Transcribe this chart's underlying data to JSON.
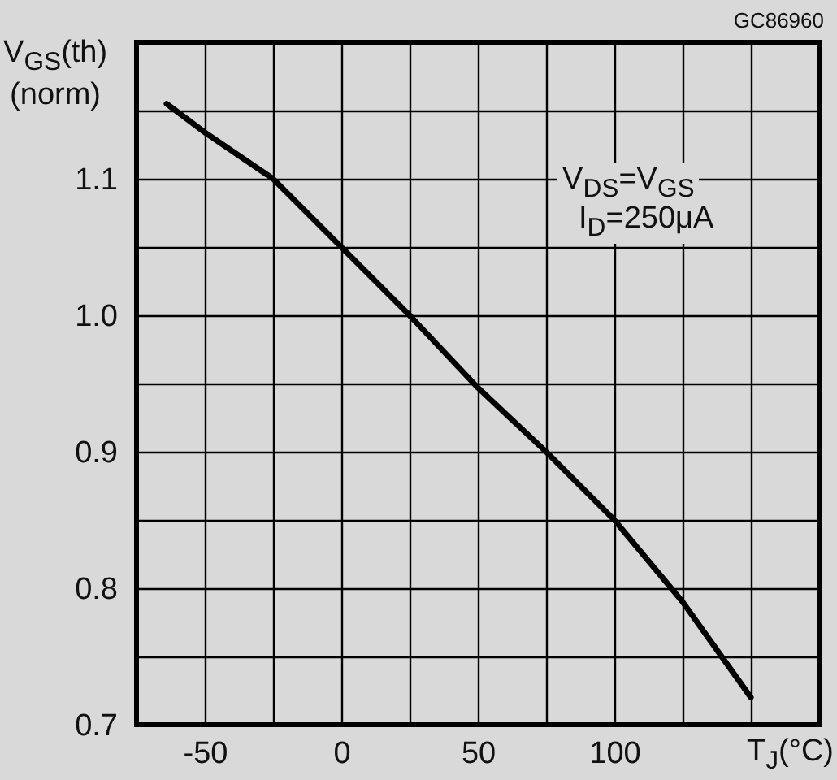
{
  "chart_data": {
    "type": "line",
    "ylabel": "V$_{GS}$(th)\n(norm)",
    "xlabel": "T$_{J}$(°C)",
    "annotations": [
      "GC86960",
      "V$_{DS}$=V$_{GS}$",
      "I$_{D}$=250μA"
    ],
    "x": [
      -64,
      -50,
      -25,
      0,
      25,
      50,
      75,
      100,
      125,
      150
    ],
    "series": [
      {
        "color": "#000000",
        "values": [
          1.155,
          1.134,
          1.1,
          1.05,
          1.0,
          0.947,
          0.9,
          0.85,
          0.79,
          0.72
        ]
      }
    ],
    "xlim": [
      -75,
      175
    ],
    "xticks": [
      {
        "value": -75,
        "label": null
      },
      -50,
      {
        "value": -25,
        "label": null
      },
      0,
      {
        "value": 25,
        "label": null
      },
      50,
      {
        "value": 75,
        "label": null
      },
      100,
      {
        "value": 125,
        "label": null
      },
      {
        "value": 150,
        "label": null
      },
      {
        "value": 175,
        "label": null
      }
    ],
    "ylim": [
      0.7,
      1.2
    ],
    "yticks": [
      0.7,
      {
        "value": 0.75,
        "label": null
      },
      0.8,
      {
        "value": 0.85,
        "label": null
      },
      0.9,
      {
        "value": 0.95,
        "label": null
      },
      {
        "value": 1,
        "label": "1.0"
      },
      {
        "value": 1.05,
        "label": null
      },
      1.1,
      {
        "value": 1.15,
        "label": null
      },
      {
        "value": 1.2,
        "label": null
      }
    ],
    "grid": true,
    "line_style": "solid",
    "marker": "none"
  }
}
